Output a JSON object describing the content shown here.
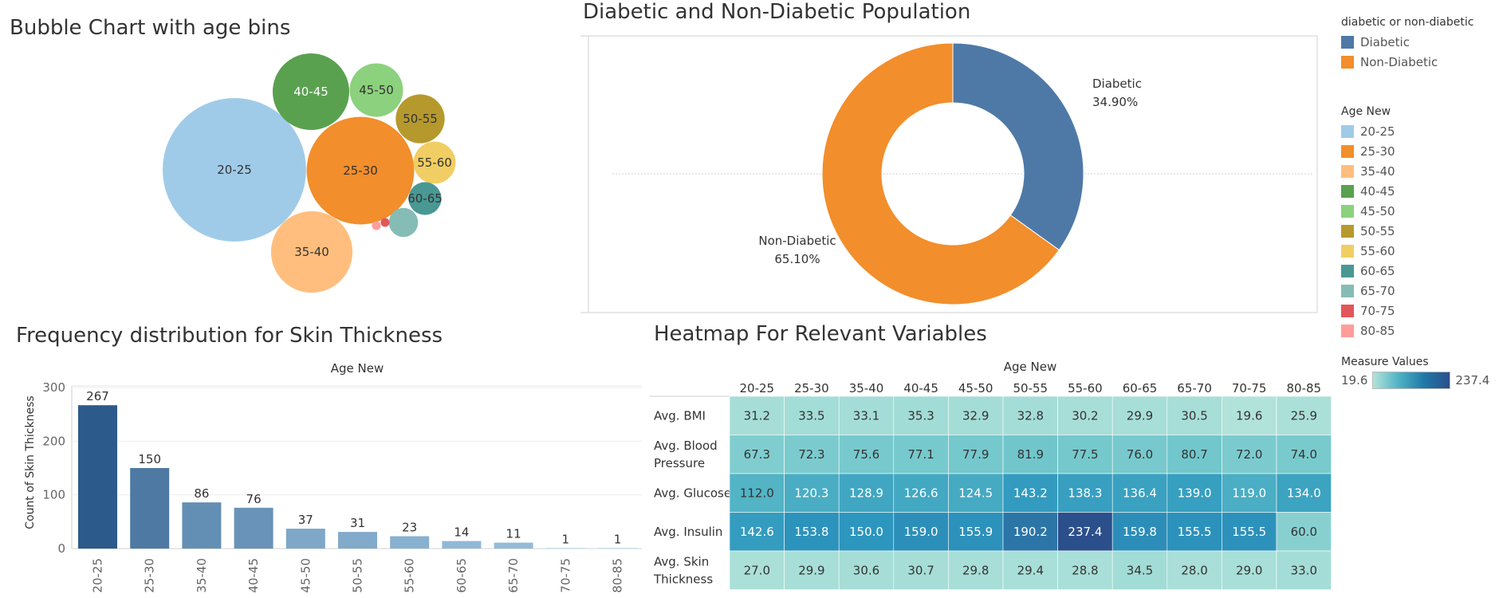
{
  "titles": {
    "bubble": "Bubble Chart with age bins",
    "donut": "Diabetic and Non-Diabetic Population",
    "bar": "Frequency distribution for Skin Thickness",
    "heatmap": "Heatmap For Relevant Variables"
  },
  "legends": {
    "diabetic": {
      "title": "diabetic or non-diabetic",
      "items": [
        {
          "label": "Diabetic",
          "color": "#4e79a7"
        },
        {
          "label": "Non-Diabetic",
          "color": "#f28e2b"
        }
      ]
    },
    "age": {
      "title": "Age New",
      "items": [
        {
          "label": "20-25",
          "color": "#a0cbe8"
        },
        {
          "label": "25-30",
          "color": "#f28e2b"
        },
        {
          "label": "35-40",
          "color": "#ffbe7d"
        },
        {
          "label": "40-45",
          "color": "#59a14f"
        },
        {
          "label": "45-50",
          "color": "#8cd17d"
        },
        {
          "label": "50-55",
          "color": "#b6992d"
        },
        {
          "label": "55-60",
          "color": "#f1ce63"
        },
        {
          "label": "60-65",
          "color": "#499894"
        },
        {
          "label": "65-70",
          "color": "#86bcb6"
        },
        {
          "label": "70-75",
          "color": "#e15759"
        },
        {
          "label": "80-85",
          "color": "#ff9d9a"
        }
      ]
    },
    "measure": {
      "title": "Measure Values",
      "min": "19.6",
      "max": "237.4"
    }
  },
  "chart_data": [
    {
      "type": "bubble",
      "title": "Bubble Chart with age bins",
      "categories": [
        "20-25",
        "25-30",
        "35-40",
        "40-45",
        "45-50",
        "50-55",
        "55-60",
        "60-65",
        "65-70",
        "70-75",
        "80-85"
      ],
      "values": [
        267,
        150,
        86,
        76,
        37,
        31,
        23,
        14,
        11,
        1,
        1
      ]
    },
    {
      "type": "pie",
      "title": "Diabetic and Non-Diabetic Population",
      "slices": [
        {
          "label": "Diabetic",
          "value": 34.9,
          "text": "34.90%",
          "color": "#4e79a7"
        },
        {
          "label": "Non-Diabetic",
          "value": 65.1,
          "text": "65.10%",
          "color": "#f28e2b"
        }
      ]
    },
    {
      "type": "bar",
      "title": "Frequency distribution for Skin Thickness",
      "xlabel": "Age New",
      "ylabel": "Count of Skin Thickness",
      "categories": [
        "20-25",
        "25-30",
        "35-40",
        "40-45",
        "45-50",
        "50-55",
        "55-60",
        "60-65",
        "65-70",
        "70-75",
        "80-85"
      ],
      "values": [
        267,
        150,
        86,
        76,
        37,
        31,
        23,
        14,
        11,
        1,
        1
      ],
      "yticks": [
        0,
        100,
        200,
        300
      ],
      "ylim": [
        0,
        320
      ],
      "grid": true
    },
    {
      "type": "heatmap",
      "title": "Heatmap For Relevant Variables",
      "xlabel": "Age New",
      "columns": [
        "20-25",
        "25-30",
        "35-40",
        "40-45",
        "45-50",
        "50-55",
        "55-60",
        "60-65",
        "65-70",
        "70-75",
        "80-85"
      ],
      "rows": [
        {
          "label": [
            "Avg. BMI"
          ],
          "values": [
            31.2,
            33.5,
            33.1,
            35.3,
            32.9,
            32.8,
            30.2,
            29.9,
            30.5,
            19.6,
            25.9
          ]
        },
        {
          "label": [
            "Avg. Blood",
            "Pressure"
          ],
          "values": [
            67.3,
            72.3,
            75.6,
            77.1,
            77.9,
            81.9,
            77.5,
            76.0,
            80.7,
            72.0,
            74.0
          ]
        },
        {
          "label": [
            "Avg. Glucose"
          ],
          "values": [
            112.0,
            120.3,
            128.9,
            126.6,
            124.5,
            143.2,
            138.3,
            136.4,
            139.0,
            119.0,
            134.0
          ]
        },
        {
          "label": [
            "Avg. Insulin"
          ],
          "values": [
            142.6,
            153.8,
            150.0,
            159.0,
            155.9,
            190.2,
            237.4,
            159.8,
            155.5,
            155.5,
            60.0
          ]
        },
        {
          "label": [
            "Avg. Skin",
            "Thickness"
          ],
          "values": [
            27.0,
            29.9,
            30.6,
            30.7,
            29.8,
            29.4,
            28.8,
            34.5,
            28.0,
            29.0,
            33.0
          ]
        }
      ],
      "color_min": 19.6,
      "color_max": 237.4
    }
  ]
}
